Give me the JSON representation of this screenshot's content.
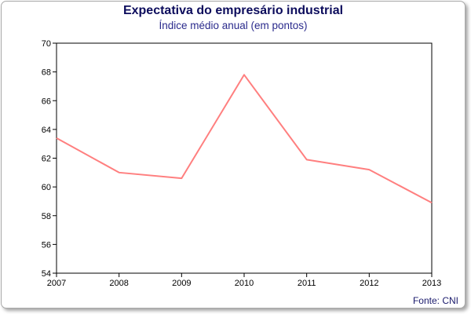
{
  "chart_data": {
    "type": "line",
    "title": "Expectativa do empresário industrial",
    "subtitle": "Índice médio anual (em pontos)",
    "source": "Fonte: CNI",
    "x": [
      "2007",
      "2008",
      "2009",
      "2010",
      "2011",
      "2012",
      "2013"
    ],
    "series": [
      {
        "values": [
          63.4,
          61.0,
          60.6,
          67.8,
          61.9,
          61.2,
          58.9
        ],
        "color": "#ff7f7f"
      }
    ],
    "y_ticks": [
      "54",
      "56",
      "58",
      "60",
      "62",
      "64",
      "66",
      "68",
      "70"
    ],
    "ylim": [
      54,
      70
    ],
    "grid": false,
    "legend": "none"
  }
}
